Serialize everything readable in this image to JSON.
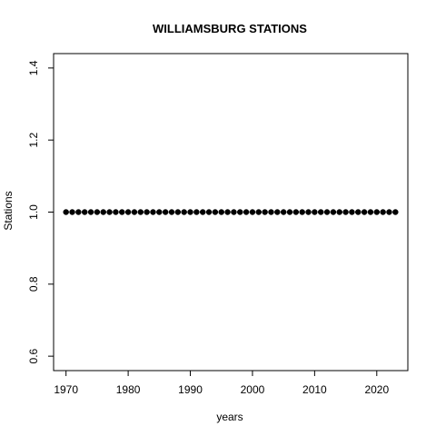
{
  "chart_data": {
    "type": "scatter",
    "title": "WILLIAMSBURG STATIONS",
    "xlabel": "years",
    "ylabel": "Stations",
    "x": [
      1970,
      1971,
      1972,
      1973,
      1974,
      1975,
      1976,
      1977,
      1978,
      1979,
      1980,
      1981,
      1982,
      1983,
      1984,
      1985,
      1986,
      1987,
      1988,
      1989,
      1990,
      1991,
      1992,
      1993,
      1994,
      1995,
      1996,
      1997,
      1998,
      1999,
      2000,
      2001,
      2002,
      2003,
      2004,
      2005,
      2006,
      2007,
      2008,
      2009,
      2010,
      2011,
      2012,
      2013,
      2014,
      2015,
      2016,
      2017,
      2018,
      2019,
      2020,
      2021,
      2022,
      2023
    ],
    "y": [
      1,
      1,
      1,
      1,
      1,
      1,
      1,
      1,
      1,
      1,
      1,
      1,
      1,
      1,
      1,
      1,
      1,
      1,
      1,
      1,
      1,
      1,
      1,
      1,
      1,
      1,
      1,
      1,
      1,
      1,
      1,
      1,
      1,
      1,
      1,
      1,
      1,
      1,
      1,
      1,
      1,
      1,
      1,
      1,
      1,
      1,
      1,
      1,
      1,
      1,
      1,
      1,
      1,
      1
    ],
    "xlim": [
      1968,
      2025
    ],
    "ylim": [
      0.56,
      1.44
    ],
    "xticks": [
      1970,
      1980,
      1990,
      2000,
      2010,
      2020
    ],
    "yticks": [
      0.6,
      0.8,
      1.0,
      1.2,
      1.4
    ],
    "ytick_labels": [
      "0.6",
      "0.8",
      "1.0",
      "1.2",
      "1.4"
    ],
    "grid": false,
    "legend": false,
    "point_color": "#000000"
  }
}
